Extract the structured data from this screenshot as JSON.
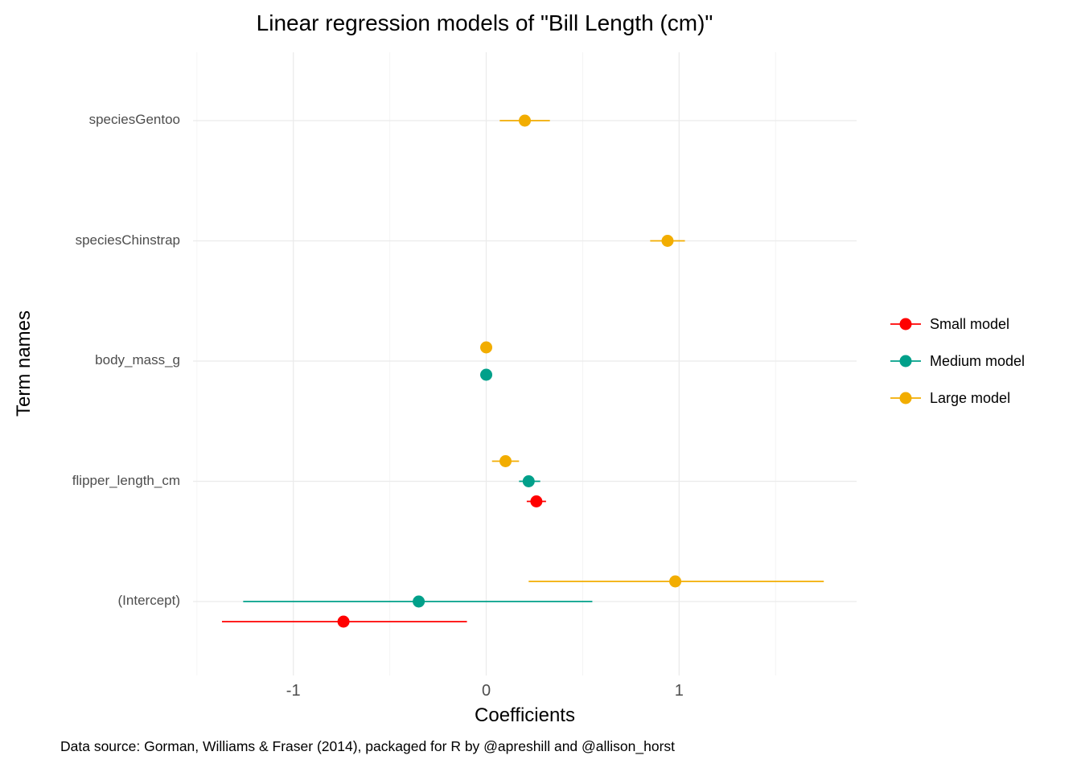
{
  "title": "Linear regression models of \"Bill Length (cm)\"",
  "caption": "Data source: Gorman, Williams & Fraser (2014), packaged for R by @apreshill and @allison_horst",
  "colors": {
    "grid_major": "#ebebeb",
    "grid_minor": "#f4f4f4",
    "axis_text": "#4d4d4d"
  },
  "chart_data": {
    "type": "scatter",
    "subtype": "point-range coefficient plot (horizontal error bars, dodged by model)",
    "title": "Linear regression models of \"Bill Length (cm)\"",
    "xlabel": "Coefficients",
    "ylabel": "Term names",
    "xlim": [
      -1.52,
      1.92
    ],
    "x_ticks": [
      -1,
      0,
      1
    ],
    "x_minor_ticks": [
      -1.5,
      -0.5,
      0.5,
      1.5
    ],
    "grid": true,
    "legend_position": "right",
    "terms_top_to_bottom": [
      "speciesGentoo",
      "speciesChinstrap",
      "body_mass_g",
      "flipper_length_cm",
      "(Intercept)"
    ],
    "dodge_order_top_to_bottom": [
      "Large model",
      "Medium model",
      "Small model"
    ],
    "series": [
      {
        "name": "Small model",
        "color": "#FF0000",
        "points": [
          {
            "term": "(Intercept)",
            "estimate": -0.74,
            "conf_low": -1.37,
            "conf_high": -0.1
          },
          {
            "term": "flipper_length_cm",
            "estimate": 0.26,
            "conf_low": 0.21,
            "conf_high": 0.31
          }
        ]
      },
      {
        "name": "Medium model",
        "color": "#00A08A",
        "points": [
          {
            "term": "(Intercept)",
            "estimate": -0.35,
            "conf_low": -1.26,
            "conf_high": 0.55
          },
          {
            "term": "flipper_length_cm",
            "estimate": 0.22,
            "conf_low": 0.17,
            "conf_high": 0.28
          },
          {
            "term": "body_mass_g",
            "estimate": 0.0,
            "conf_low": -0.03,
            "conf_high": 0.03
          }
        ]
      },
      {
        "name": "Large model",
        "color": "#F2AD00",
        "points": [
          {
            "term": "(Intercept)",
            "estimate": 0.98,
            "conf_low": 0.22,
            "conf_high": 1.75
          },
          {
            "term": "flipper_length_cm",
            "estimate": 0.1,
            "conf_low": 0.03,
            "conf_high": 0.17
          },
          {
            "term": "body_mass_g",
            "estimate": 0.0,
            "conf_low": -0.03,
            "conf_high": 0.03
          },
          {
            "term": "speciesChinstrap",
            "estimate": 0.94,
            "conf_low": 0.85,
            "conf_high": 1.03
          },
          {
            "term": "speciesGentoo",
            "estimate": 0.2,
            "conf_low": 0.07,
            "conf_high": 0.33
          }
        ]
      }
    ]
  }
}
